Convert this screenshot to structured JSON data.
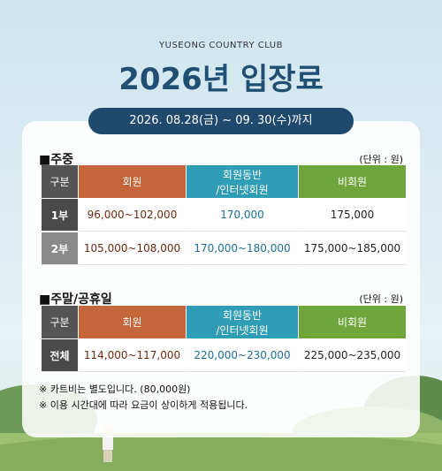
{
  "header": {
    "subtitle": "YUSEONG COUNTRY CLUB",
    "title": "2026년 입장료",
    "period": "2026. 08.28(금) ~ 09. 30(수)까지"
  },
  "sections": [
    {
      "title": "■주중",
      "unit": "(단위 : 원)",
      "table": {
        "header": [
          "구분",
          "회원",
          [
            "회원동반",
            "/인터넷회원"
          ],
          "비회원"
        ],
        "rows": [
          [
            "1부",
            "96,000~102,000",
            "170,000",
            "175,000"
          ],
          [
            "2부",
            "105,000~108,000",
            "170,000~180,000",
            "175,000~185,000"
          ]
        ]
      }
    },
    {
      "title": "■주말/공휴일",
      "unit": "(단위 : 원)",
      "table": {
        "header": [
          "구분",
          "회원",
          [
            "회원동반",
            "/인터넷회원"
          ],
          "비회원"
        ],
        "rows": [
          [
            "전체",
            "114,000~117,000",
            "220,000~230,000",
            "225,000~235,000"
          ]
        ]
      }
    }
  ],
  "notes": [
    "※ 카트비는 별도입니다. (80,000원)",
    "※ 이용 시간대에 따라 요금이 상이하게 적용됩니다."
  ]
}
